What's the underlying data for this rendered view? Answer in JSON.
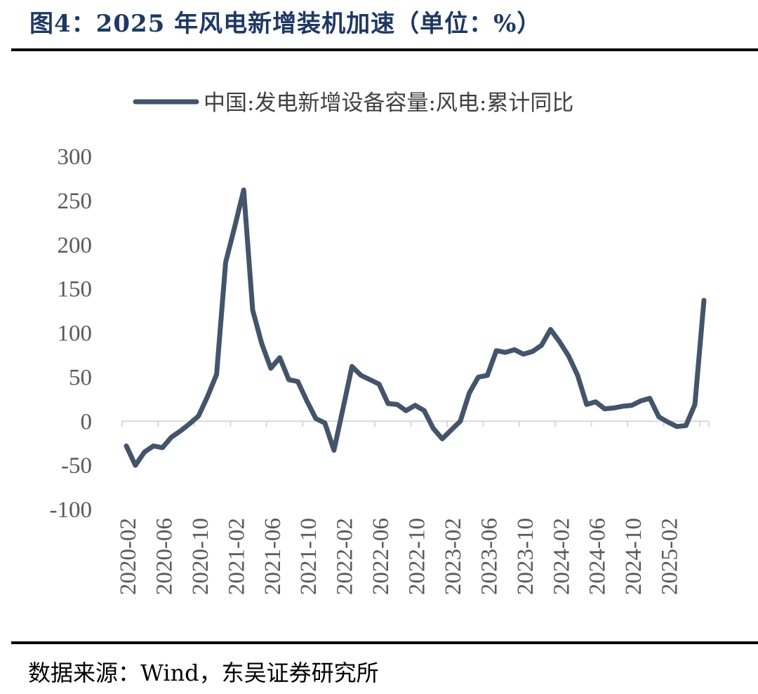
{
  "header": {
    "title": "图4：2025 年风电新增装机加速（单位：%）"
  },
  "footer": {
    "source": "数据来源：Wind，东吴证券研究所"
  },
  "chart_data": {
    "type": "line",
    "title": "图4：2025 年风电新增装机加速（单位：%）",
    "xlabel": "",
    "ylabel": "",
    "ylim": [
      -100,
      300
    ],
    "yticks": [
      300,
      250,
      200,
      150,
      100,
      50,
      0,
      -50,
      -100
    ],
    "ytick_labels": [
      "300",
      "250",
      "200",
      "150",
      "100",
      "50",
      "0",
      "-50",
      "-100"
    ],
    "xtick_labels": [
      "2020-02",
      "2020-06",
      "2020-10",
      "2021-02",
      "2021-06",
      "2021-10",
      "2022-02",
      "2022-06",
      "2022-10",
      "2023-02",
      "2023-06",
      "2023-10",
      "2024-02",
      "2024-06",
      "2024-10",
      "2025-02"
    ],
    "legend": {
      "position": "top-center"
    },
    "grid": false,
    "colors": {
      "line": "#44546a",
      "axis": "#d9d9d9",
      "title": "#1f3864"
    },
    "series": [
      {
        "name": "中国:发电新增设备容量:风电:累计同比",
        "x": [
          "2020-02",
          "2020-03",
          "2020-04",
          "2020-05",
          "2020-06",
          "2020-07",
          "2020-08",
          "2020-09",
          "2020-10",
          "2020-11",
          "2020-12",
          "2021-01",
          "2021-02",
          "2021-03",
          "2021-04",
          "2021-05",
          "2021-06",
          "2021-07",
          "2021-08",
          "2021-09",
          "2021-10",
          "2021-11",
          "2021-12",
          "2022-01",
          "2022-02",
          "2022-03",
          "2022-04",
          "2022-05",
          "2022-06",
          "2022-07",
          "2022-08",
          "2022-09",
          "2022-10",
          "2022-11",
          "2022-12",
          "2023-01",
          "2023-02",
          "2023-03",
          "2023-04",
          "2023-05",
          "2023-06",
          "2023-07",
          "2023-08",
          "2023-09",
          "2023-10",
          "2023-11",
          "2023-12",
          "2024-01",
          "2024-02",
          "2024-03",
          "2024-04",
          "2024-05",
          "2024-06",
          "2024-07",
          "2024-08",
          "2024-09",
          "2024-10",
          "2024-11",
          "2024-12",
          "2025-01",
          "2025-02",
          "2025-03",
          "2025-04",
          "2025-05",
          "2025-06"
        ],
        "values": [
          -28,
          -50,
          -35,
          -28,
          -30,
          -18,
          -11,
          -3,
          6,
          28,
          53,
          180,
          220,
          262,
          126,
          88,
          60,
          72,
          47,
          45,
          23,
          3,
          -2,
          -33,
          14,
          62,
          52,
          47,
          42,
          20,
          19,
          12,
          18,
          12,
          -8,
          -20,
          -10,
          0,
          32,
          50,
          52,
          80,
          78,
          81,
          76,
          79,
          86,
          104,
          90,
          74,
          52,
          19,
          22,
          14,
          15,
          17,
          18,
          23,
          26,
          5,
          -1,
          -6,
          -5,
          19,
          137
        ]
      }
    ]
  }
}
